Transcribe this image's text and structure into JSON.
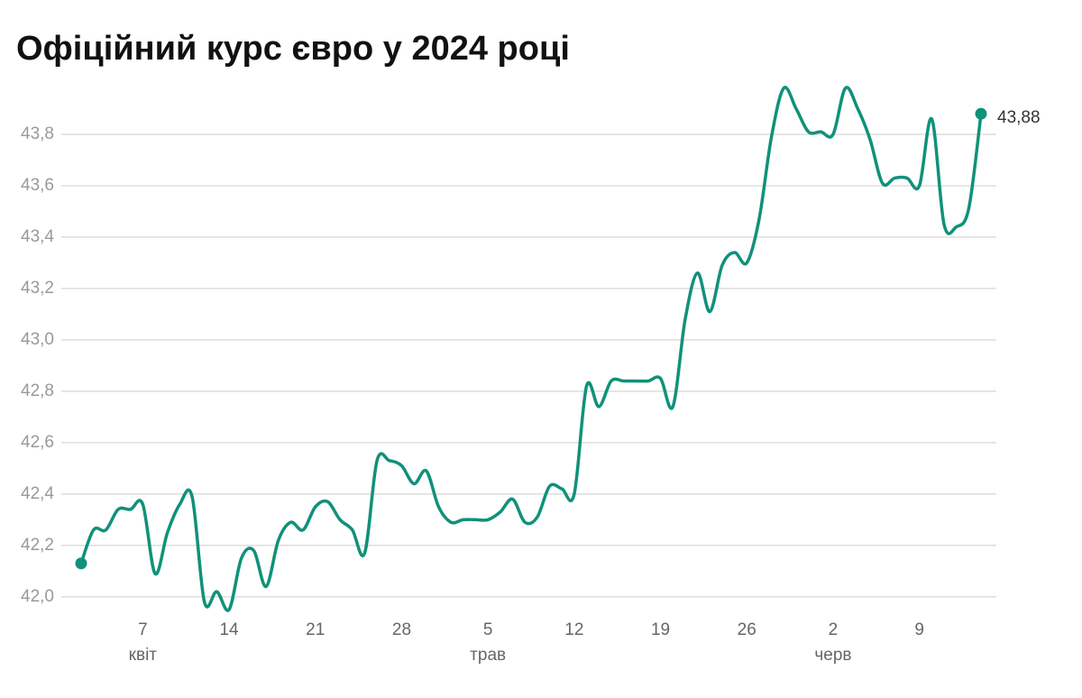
{
  "chart_data": {
    "type": "line",
    "title": "Офіційний курс євро у 2024 році",
    "x": [
      "2024-04-02",
      "2024-04-03",
      "2024-04-04",
      "2024-04-05",
      "2024-04-06",
      "2024-04-07",
      "2024-04-08",
      "2024-04-09",
      "2024-04-10",
      "2024-04-11",
      "2024-04-12",
      "2024-04-13",
      "2024-04-14",
      "2024-04-15",
      "2024-04-16",
      "2024-04-17",
      "2024-04-18",
      "2024-04-19",
      "2024-04-20",
      "2024-04-21",
      "2024-04-22",
      "2024-04-23",
      "2024-04-24",
      "2024-04-25",
      "2024-04-26",
      "2024-04-27",
      "2024-04-28",
      "2024-04-29",
      "2024-04-30",
      "2024-05-01",
      "2024-05-02",
      "2024-05-03",
      "2024-05-04",
      "2024-05-05",
      "2024-05-06",
      "2024-05-07",
      "2024-05-08",
      "2024-05-09",
      "2024-05-10",
      "2024-05-11",
      "2024-05-12",
      "2024-05-13",
      "2024-05-14",
      "2024-05-15",
      "2024-05-16",
      "2024-05-17",
      "2024-05-18",
      "2024-05-19",
      "2024-05-20",
      "2024-05-21",
      "2024-05-22",
      "2024-05-23",
      "2024-05-24",
      "2024-05-25",
      "2024-05-26",
      "2024-05-27",
      "2024-05-28",
      "2024-05-29",
      "2024-05-30",
      "2024-05-31",
      "2024-06-01",
      "2024-06-02",
      "2024-06-03",
      "2024-06-04",
      "2024-06-05",
      "2024-06-06",
      "2024-06-07",
      "2024-06-08",
      "2024-06-09",
      "2024-06-10",
      "2024-06-11",
      "2024-06-12",
      "2024-06-13",
      "2024-06-14"
    ],
    "series": [
      {
        "name": "EUR",
        "color": "#10917a",
        "values": [
          42.13,
          42.26,
          42.26,
          42.34,
          42.34,
          42.36,
          42.09,
          42.25,
          42.36,
          42.39,
          41.98,
          42.02,
          41.95,
          42.15,
          42.18,
          42.04,
          42.22,
          42.29,
          42.26,
          42.35,
          42.37,
          42.3,
          42.26,
          42.17,
          42.53,
          42.53,
          42.51,
          42.44,
          42.49,
          42.35,
          42.29,
          42.3,
          42.3,
          42.3,
          42.33,
          42.38,
          42.29,
          42.31,
          42.43,
          42.42,
          42.4,
          42.82,
          42.74,
          42.84,
          42.84,
          42.84,
          42.84,
          42.85,
          42.74,
          43.08,
          43.26,
          43.11,
          43.29,
          43.34,
          43.3,
          43.47,
          43.79,
          43.98,
          43.9,
          43.81,
          43.81,
          43.8,
          43.98,
          43.9,
          43.78,
          43.61,
          43.63,
          43.63,
          43.6,
          43.86,
          43.45,
          43.44,
          43.51,
          43.88
        ],
        "value_labels": [
          null,
          null,
          null,
          null,
          null,
          null,
          null,
          null,
          null,
          null,
          null,
          null,
          null,
          null,
          null,
          null,
          null,
          null,
          null,
          null,
          null,
          null,
          null,
          null,
          null,
          null,
          null,
          null,
          null,
          null,
          null,
          null,
          null,
          null,
          null,
          null,
          null,
          null,
          null,
          null,
          null,
          null,
          null,
          null,
          null,
          null,
          null,
          null,
          null,
          null,
          null,
          null,
          null,
          null,
          null,
          null,
          null,
          null,
          null,
          null,
          null,
          null,
          null,
          null,
          null,
          null,
          null,
          null,
          null,
          null,
          null,
          null,
          null,
          "43,88"
        ]
      }
    ],
    "xlim": [
      "2024-04-02",
      "2024-06-14"
    ],
    "xticks": [
      {
        "value": "2024-04-07",
        "label": "7"
      },
      {
        "value": "2024-04-14",
        "label": "14"
      },
      {
        "value": "2024-04-21",
        "label": "21"
      },
      {
        "value": "2024-04-28",
        "label": "28"
      },
      {
        "value": "2024-05-05",
        "label": "5"
      },
      {
        "value": "2024-05-12",
        "label": "12"
      },
      {
        "value": "2024-05-19",
        "label": "19"
      },
      {
        "value": "2024-05-26",
        "label": "26"
      },
      {
        "value": "2024-06-02",
        "label": "2"
      },
      {
        "value": "2024-06-09",
        "label": "9"
      }
    ],
    "month_labels": [
      {
        "value": "2024-04-07",
        "label": "квіт"
      },
      {
        "value": "2024-05-05",
        "label": "трав"
      },
      {
        "value": "2024-06-02",
        "label": "черв"
      }
    ],
    "ylim": [
      41.95,
      44.0
    ],
    "yticks": [
      {
        "value": 42,
        "label": "42,0"
      },
      {
        "value": 42.2,
        "label": "42,2"
      },
      {
        "value": 42.4,
        "label": "42,4"
      },
      {
        "value": 42.6,
        "label": "42,6"
      },
      {
        "value": 42.8,
        "label": "42,8"
      },
      {
        "value": 43,
        "label": "43,0"
      },
      {
        "value": 43.2,
        "label": "43,2"
      },
      {
        "value": 43.4,
        "label": "43,4"
      },
      {
        "value": 43.6,
        "label": "43,6"
      },
      {
        "value": 43.8,
        "label": "43,8"
      }
    ],
    "grid": true
  }
}
